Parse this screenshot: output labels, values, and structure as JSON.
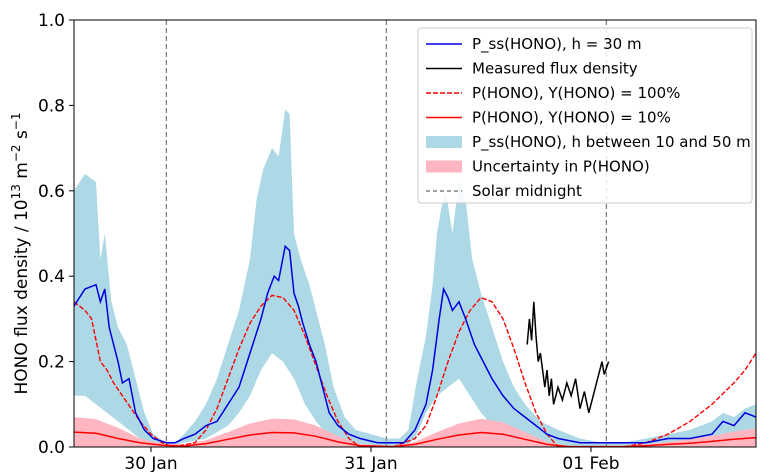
{
  "chart_data": {
    "type": "line",
    "ylabel_main": "HONO flux density / 10",
    "ylabel_exp": "13",
    "ylabel_units": " m",
    "ylabel_units_exp": "−2",
    "ylabel_s": " s",
    "ylabel_s_exp": "−1",
    "xlim": [
      0,
      3.1
    ],
    "ylim": [
      0,
      1.0
    ],
    "yticks": [
      {
        "v": 0.0,
        "label": "0.0"
      },
      {
        "v": 0.2,
        "label": "0.2"
      },
      {
        "v": 0.4,
        "label": "0.4"
      },
      {
        "v": 0.6,
        "label": "0.6"
      },
      {
        "v": 0.8,
        "label": "0.8"
      },
      {
        "v": 1.0,
        "label": "1.0"
      }
    ],
    "xticks": [
      {
        "v": 0.35,
        "label": "30 Jan"
      },
      {
        "v": 1.35,
        "label": "31 Jan"
      },
      {
        "v": 2.35,
        "label": "01 Feb"
      }
    ],
    "solar_midnights": [
      0.42,
      1.42,
      2.42
    ],
    "legend": {
      "placement": "top-right",
      "entries": [
        {
          "key": "pss",
          "label": "P_ss(HONO), h = 30 m"
        },
        {
          "key": "measured",
          "label": "Measured flux density"
        },
        {
          "key": "y100",
          "label": "P(HONO), Y(HONO) = 100%"
        },
        {
          "key": "y10",
          "label": "P(HONO), Y(HONO) = 10%"
        },
        {
          "key": "band",
          "label": "P_ss(HONO), h between 10 and 50 m"
        },
        {
          "key": "unc",
          "label": "Uncertainty in P(HONO)"
        },
        {
          "key": "mid",
          "label": "Solar midnight"
        }
      ]
    },
    "colors": {
      "pss": "#0000dd",
      "measured": "#000000",
      "y100": "#ff0000",
      "y10": "#ff0000",
      "band": "#add8e6",
      "unc": "#ffb6c1",
      "mid": "#808080"
    },
    "series": {
      "band_upper": [
        [
          0,
          0.6
        ],
        [
          0.05,
          0.64
        ],
        [
          0.1,
          0.62
        ],
        [
          0.12,
          0.44
        ],
        [
          0.14,
          0.5
        ],
        [
          0.17,
          0.34
        ],
        [
          0.2,
          0.28
        ],
        [
          0.24,
          0.24
        ],
        [
          0.28,
          0.16
        ],
        [
          0.32,
          0.08
        ],
        [
          0.36,
          0.03
        ],
        [
          0.42,
          0.01
        ],
        [
          0.46,
          0.01
        ],
        [
          0.5,
          0.03
        ],
        [
          0.55,
          0.06
        ],
        [
          0.6,
          0.1
        ],
        [
          0.65,
          0.16
        ],
        [
          0.7,
          0.24
        ],
        [
          0.75,
          0.32
        ],
        [
          0.8,
          0.44
        ],
        [
          0.83,
          0.58
        ],
        [
          0.86,
          0.65
        ],
        [
          0.9,
          0.7
        ],
        [
          0.93,
          0.68
        ],
        [
          0.96,
          0.79
        ],
        [
          0.98,
          0.78
        ],
        [
          1.0,
          0.5
        ],
        [
          1.03,
          0.44
        ],
        [
          1.07,
          0.38
        ],
        [
          1.1,
          0.32
        ],
        [
          1.14,
          0.24
        ],
        [
          1.18,
          0.14
        ],
        [
          1.23,
          0.07
        ],
        [
          1.28,
          0.04
        ],
        [
          1.35,
          0.03
        ],
        [
          1.42,
          0.02
        ],
        [
          1.48,
          0.02
        ],
        [
          1.52,
          0.04
        ],
        [
          1.56,
          0.16
        ],
        [
          1.6,
          0.26
        ],
        [
          1.63,
          0.38
        ],
        [
          1.65,
          0.5
        ],
        [
          1.67,
          0.56
        ],
        [
          1.69,
          0.6
        ],
        [
          1.72,
          0.5
        ],
        [
          1.75,
          0.62
        ],
        [
          1.78,
          0.58
        ],
        [
          1.81,
          0.44
        ],
        [
          1.85,
          0.36
        ],
        [
          1.9,
          0.28
        ],
        [
          1.95,
          0.2
        ],
        [
          2.0,
          0.14
        ],
        [
          2.05,
          0.1
        ],
        [
          2.12,
          0.06
        ],
        [
          2.2,
          0.04
        ],
        [
          2.3,
          0.02
        ],
        [
          2.4,
          0.01
        ],
        [
          2.5,
          0.01
        ],
        [
          2.6,
          0.02
        ],
        [
          2.7,
          0.03
        ],
        [
          2.8,
          0.04
        ],
        [
          2.9,
          0.06
        ],
        [
          2.95,
          0.08
        ],
        [
          3.0,
          0.07
        ],
        [
          3.05,
          0.09
        ],
        [
          3.1,
          0.1
        ]
      ],
      "band_lower": [
        [
          0,
          0.12
        ],
        [
          0.05,
          0.12
        ],
        [
          0.1,
          0.1
        ],
        [
          0.15,
          0.08
        ],
        [
          0.2,
          0.06
        ],
        [
          0.25,
          0.04
        ],
        [
          0.3,
          0.02
        ],
        [
          0.35,
          0.01
        ],
        [
          0.42,
          0.0
        ],
        [
          0.5,
          0.01
        ],
        [
          0.6,
          0.02
        ],
        [
          0.7,
          0.05
        ],
        [
          0.75,
          0.08
        ],
        [
          0.8,
          0.12
        ],
        [
          0.85,
          0.18
        ],
        [
          0.9,
          0.22
        ],
        [
          0.95,
          0.2
        ],
        [
          1.0,
          0.16
        ],
        [
          1.05,
          0.1
        ],
        [
          1.1,
          0.06
        ],
        [
          1.15,
          0.03
        ],
        [
          1.2,
          0.01
        ],
        [
          1.3,
          0.0
        ],
        [
          1.42,
          0.0
        ],
        [
          1.5,
          0.0
        ],
        [
          1.55,
          0.02
        ],
        [
          1.6,
          0.08
        ],
        [
          1.65,
          0.12
        ],
        [
          1.7,
          0.14
        ],
        [
          1.75,
          0.16
        ],
        [
          1.8,
          0.12
        ],
        [
          1.85,
          0.08
        ],
        [
          1.9,
          0.05
        ],
        [
          1.95,
          0.03
        ],
        [
          2.0,
          0.02
        ],
        [
          2.1,
          0.01
        ],
        [
          2.2,
          0.0
        ],
        [
          2.42,
          0.0
        ],
        [
          2.6,
          0.0
        ],
        [
          2.8,
          0.01
        ],
        [
          2.9,
          0.02
        ],
        [
          3.0,
          0.03
        ],
        [
          3.1,
          0.03
        ]
      ],
      "pss": [
        [
          0,
          0.33
        ],
        [
          0.05,
          0.37
        ],
        [
          0.1,
          0.38
        ],
        [
          0.12,
          0.34
        ],
        [
          0.14,
          0.37
        ],
        [
          0.16,
          0.28
        ],
        [
          0.18,
          0.24
        ],
        [
          0.2,
          0.2
        ],
        [
          0.22,
          0.15
        ],
        [
          0.25,
          0.16
        ],
        [
          0.28,
          0.08
        ],
        [
          0.32,
          0.04
        ],
        [
          0.36,
          0.02
        ],
        [
          0.42,
          0.01
        ],
        [
          0.46,
          0.01
        ],
        [
          0.5,
          0.02
        ],
        [
          0.55,
          0.03
        ],
        [
          0.6,
          0.05
        ],
        [
          0.65,
          0.06
        ],
        [
          0.7,
          0.1
        ],
        [
          0.75,
          0.14
        ],
        [
          0.8,
          0.22
        ],
        [
          0.85,
          0.3
        ],
        [
          0.88,
          0.36
        ],
        [
          0.91,
          0.4
        ],
        [
          0.93,
          0.39
        ],
        [
          0.96,
          0.47
        ],
        [
          0.98,
          0.46
        ],
        [
          1.0,
          0.36
        ],
        [
          1.02,
          0.33
        ],
        [
          1.04,
          0.29
        ],
        [
          1.07,
          0.24
        ],
        [
          1.1,
          0.2
        ],
        [
          1.13,
          0.14
        ],
        [
          1.16,
          0.08
        ],
        [
          1.2,
          0.05
        ],
        [
          1.25,
          0.03
        ],
        [
          1.3,
          0.02
        ],
        [
          1.38,
          0.01
        ],
        [
          1.42,
          0.01
        ],
        [
          1.5,
          0.01
        ],
        [
          1.55,
          0.04
        ],
        [
          1.6,
          0.1
        ],
        [
          1.63,
          0.18
        ],
        [
          1.66,
          0.3
        ],
        [
          1.68,
          0.37
        ],
        [
          1.7,
          0.35
        ],
        [
          1.72,
          0.32
        ],
        [
          1.75,
          0.34
        ],
        [
          1.78,
          0.3
        ],
        [
          1.82,
          0.24
        ],
        [
          1.86,
          0.2
        ],
        [
          1.9,
          0.16
        ],
        [
          1.95,
          0.12
        ],
        [
          2.0,
          0.09
        ],
        [
          2.05,
          0.07
        ],
        [
          2.1,
          0.05
        ],
        [
          2.15,
          0.03
        ],
        [
          2.2,
          0.02
        ],
        [
          2.3,
          0.01
        ],
        [
          2.42,
          0.01
        ],
        [
          2.5,
          0.01
        ],
        [
          2.6,
          0.01
        ],
        [
          2.7,
          0.02
        ],
        [
          2.8,
          0.02
        ],
        [
          2.9,
          0.03
        ],
        [
          2.95,
          0.06
        ],
        [
          3.0,
          0.05
        ],
        [
          3.05,
          0.08
        ],
        [
          3.1,
          0.07
        ]
      ],
      "y100": [
        [
          0,
          0.34
        ],
        [
          0.05,
          0.32
        ],
        [
          0.08,
          0.3
        ],
        [
          0.1,
          0.25
        ],
        [
          0.12,
          0.2
        ],
        [
          0.15,
          0.18
        ],
        [
          0.18,
          0.15
        ],
        [
          0.22,
          0.12
        ],
        [
          0.26,
          0.09
        ],
        [
          0.3,
          0.06
        ],
        [
          0.35,
          0.03
        ],
        [
          0.4,
          0.01
        ],
        [
          0.45,
          0.0
        ],
        [
          0.55,
          0.01
        ],
        [
          0.6,
          0.04
        ],
        [
          0.65,
          0.09
        ],
        [
          0.7,
          0.16
        ],
        [
          0.75,
          0.23
        ],
        [
          0.8,
          0.29
        ],
        [
          0.85,
          0.33
        ],
        [
          0.9,
          0.355
        ],
        [
          0.95,
          0.35
        ],
        [
          1.0,
          0.32
        ],
        [
          1.05,
          0.26
        ],
        [
          1.1,
          0.19
        ],
        [
          1.15,
          0.12
        ],
        [
          1.2,
          0.06
        ],
        [
          1.25,
          0.02
        ],
        [
          1.3,
          0.0
        ],
        [
          1.45,
          0.0
        ],
        [
          1.55,
          0.02
        ],
        [
          1.6,
          0.05
        ],
        [
          1.65,
          0.12
        ],
        [
          1.7,
          0.2
        ],
        [
          1.75,
          0.27
        ],
        [
          1.8,
          0.32
        ],
        [
          1.85,
          0.35
        ],
        [
          1.9,
          0.34
        ],
        [
          1.95,
          0.3
        ],
        [
          2.0,
          0.23
        ],
        [
          2.05,
          0.15
        ],
        [
          2.1,
          0.08
        ],
        [
          2.15,
          0.03
        ],
        [
          2.2,
          0.0
        ],
        [
          2.5,
          0.0
        ],
        [
          2.6,
          0.01
        ],
        [
          2.7,
          0.03
        ],
        [
          2.8,
          0.06
        ],
        [
          2.9,
          0.1
        ],
        [
          3.0,
          0.15
        ],
        [
          3.05,
          0.18
        ],
        [
          3.1,
          0.22
        ]
      ],
      "y10": [
        [
          0,
          0.035
        ],
        [
          0.1,
          0.032
        ],
        [
          0.2,
          0.02
        ],
        [
          0.3,
          0.01
        ],
        [
          0.4,
          0.004
        ],
        [
          0.5,
          0.002
        ],
        [
          0.6,
          0.008
        ],
        [
          0.7,
          0.018
        ],
        [
          0.8,
          0.028
        ],
        [
          0.9,
          0.034
        ],
        [
          1.0,
          0.033
        ],
        [
          1.1,
          0.025
        ],
        [
          1.2,
          0.012
        ],
        [
          1.3,
          0.003
        ],
        [
          1.45,
          0.001
        ],
        [
          1.55,
          0.006
        ],
        [
          1.65,
          0.018
        ],
        [
          1.75,
          0.028
        ],
        [
          1.85,
          0.034
        ],
        [
          1.95,
          0.03
        ],
        [
          2.05,
          0.018
        ],
        [
          2.15,
          0.006
        ],
        [
          2.25,
          0.001
        ],
        [
          2.5,
          0.001
        ],
        [
          2.6,
          0.003
        ],
        [
          2.7,
          0.006
        ],
        [
          2.8,
          0.009
        ],
        [
          2.9,
          0.013
        ],
        [
          3.0,
          0.018
        ],
        [
          3.1,
          0.022
        ]
      ],
      "unc_upper": [
        [
          0,
          0.07
        ],
        [
          0.1,
          0.065
        ],
        [
          0.2,
          0.045
        ],
        [
          0.3,
          0.02
        ],
        [
          0.4,
          0.008
        ],
        [
          0.5,
          0.006
        ],
        [
          0.6,
          0.016
        ],
        [
          0.7,
          0.035
        ],
        [
          0.8,
          0.055
        ],
        [
          0.9,
          0.066
        ],
        [
          1.0,
          0.065
        ],
        [
          1.1,
          0.05
        ],
        [
          1.2,
          0.025
        ],
        [
          1.3,
          0.007
        ],
        [
          1.45,
          0.002
        ],
        [
          1.55,
          0.012
        ],
        [
          1.65,
          0.035
        ],
        [
          1.75,
          0.055
        ],
        [
          1.85,
          0.066
        ],
        [
          1.95,
          0.058
        ],
        [
          2.05,
          0.035
        ],
        [
          2.15,
          0.012
        ],
        [
          2.25,
          0.002
        ],
        [
          2.5,
          0.002
        ],
        [
          2.6,
          0.006
        ],
        [
          2.7,
          0.012
        ],
        [
          2.8,
          0.018
        ],
        [
          2.9,
          0.026
        ],
        [
          3.0,
          0.036
        ],
        [
          3.1,
          0.044
        ]
      ],
      "unc_lower": [
        [
          0,
          0.0
        ],
        [
          3.1,
          0.0
        ]
      ],
      "measured": [
        [
          2.06,
          0.24
        ],
        [
          2.07,
          0.3
        ],
        [
          2.08,
          0.25
        ],
        [
          2.09,
          0.34
        ],
        [
          2.1,
          0.26
        ],
        [
          2.11,
          0.2
        ],
        [
          2.12,
          0.22
        ],
        [
          2.13,
          0.18
        ],
        [
          2.14,
          0.14
        ],
        [
          2.15,
          0.18
        ],
        [
          2.16,
          0.12
        ],
        [
          2.17,
          0.16
        ],
        [
          2.18,
          0.1
        ],
        [
          2.2,
          0.14
        ],
        [
          2.22,
          0.11
        ],
        [
          2.24,
          0.15
        ],
        [
          2.26,
          0.12
        ],
        [
          2.28,
          0.16
        ],
        [
          2.3,
          0.09
        ],
        [
          2.32,
          0.13
        ],
        [
          2.34,
          0.08
        ],
        [
          2.36,
          0.12
        ],
        [
          2.38,
          0.16
        ],
        [
          2.4,
          0.2
        ],
        [
          2.41,
          0.17
        ],
        [
          2.43,
          0.2
        ]
      ]
    }
  }
}
